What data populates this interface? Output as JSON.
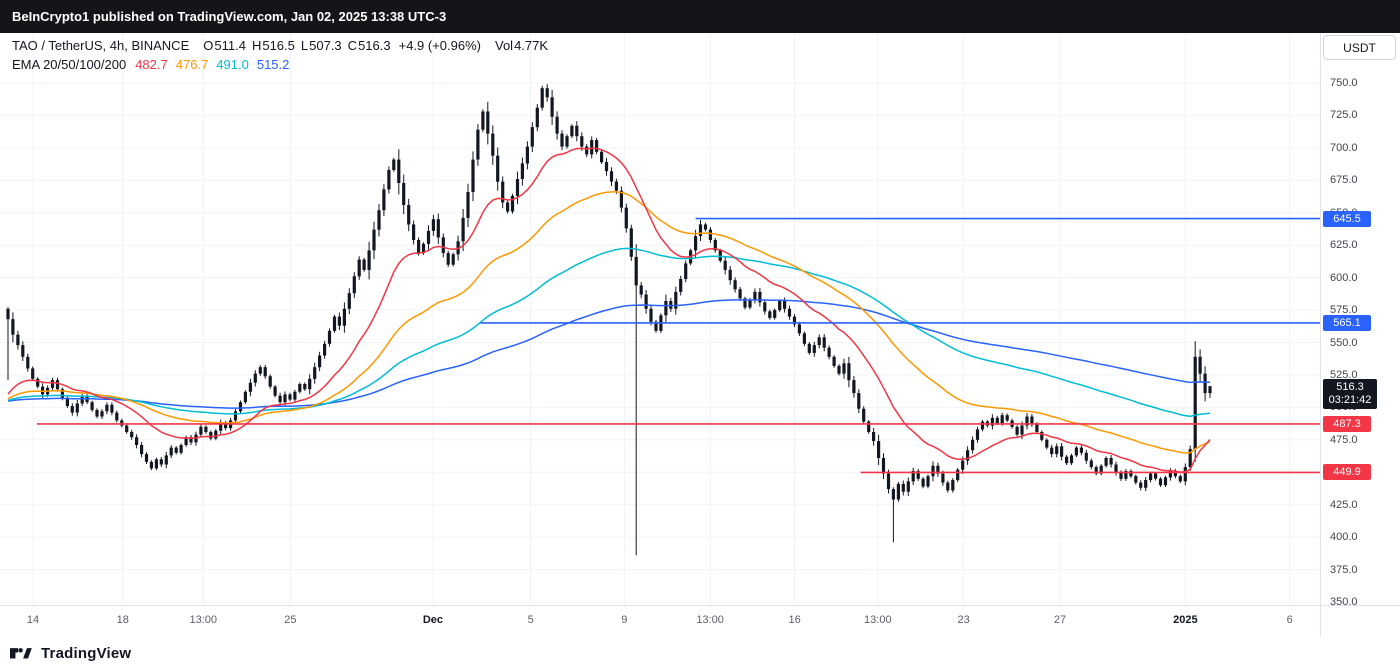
{
  "banner": {
    "text": "BeInCrypto1 published on TradingView.com, Jan 02, 2025 13:38 UTC-3"
  },
  "header": {
    "symbol": "TAO / TetherUS, 4h, BINANCE",
    "ohlc": [
      {
        "label": "O",
        "value": "511.4"
      },
      {
        "label": "H",
        "value": "516.5"
      },
      {
        "label": "L",
        "value": "507.3"
      },
      {
        "label": "C",
        "value": "516.3"
      }
    ],
    "change": "+4.9 (+0.96%)",
    "volume_label": "Vol",
    "volume_value": "4.77K",
    "ema_label": "EMA 20/50/100/200"
  },
  "axis": {
    "currency": "USDT"
  },
  "footer": {
    "brand": "TradingView"
  },
  "colors": {
    "background": "#ffffff",
    "banner_bg": "#141519",
    "grid": "#f0f3fa",
    "candle": "#131722",
    "axis_border": "#e0e3eb",
    "blue": "#2962ff",
    "red": "#f23645"
  },
  "chart_data": {
    "type": "candlestick",
    "symbol": "TAO / TetherUS",
    "timeframe": "4h",
    "exchange": "BINANCE",
    "price_axis": {
      "min": 350,
      "max": 750,
      "tick_step": 25,
      "tick_labels": [
        "750.0",
        "725.0",
        "700.0",
        "675.0",
        "650.0",
        "625.0",
        "600.0",
        "575.0",
        "550.0",
        "525.0",
        "500.0",
        "475.0",
        "450.0",
        "425.0",
        "400.0",
        "375.0",
        "350.0"
      ]
    },
    "time_axis": {
      "ticks": [
        {
          "label": "14",
          "pos": 0.025,
          "bold": false
        },
        {
          "label": "18",
          "pos": 0.093,
          "bold": false
        },
        {
          "label": "13:00",
          "pos": 0.154,
          "bold": false
        },
        {
          "label": "25",
          "pos": 0.22,
          "bold": false
        },
        {
          "label": "Dec",
          "pos": 0.328,
          "bold": true
        },
        {
          "label": "5",
          "pos": 0.402,
          "bold": false
        },
        {
          "label": "9",
          "pos": 0.473,
          "bold": false
        },
        {
          "label": "13:00",
          "pos": 0.538,
          "bold": false
        },
        {
          "label": "16",
          "pos": 0.602,
          "bold": false
        },
        {
          "label": "13:00",
          "pos": 0.665,
          "bold": false
        },
        {
          "label": "23",
          "pos": 0.73,
          "bold": false
        },
        {
          "label": "27",
          "pos": 0.803,
          "bold": false
        },
        {
          "label": "2025",
          "pos": 0.898,
          "bold": true
        },
        {
          "label": "6",
          "pos": 0.977,
          "bold": false
        }
      ]
    },
    "candles": {
      "first_open": 576,
      "closes": [
        568,
        556,
        548,
        539,
        530,
        522,
        516,
        510,
        515,
        521,
        514,
        507,
        501,
        496,
        503,
        509,
        504,
        498,
        493,
        497,
        502,
        496,
        490,
        486,
        481,
        477,
        471,
        464,
        458,
        453,
        460,
        456,
        463,
        469,
        465,
        471,
        477,
        473,
        479,
        485,
        481,
        476,
        482,
        488,
        484,
        490,
        497,
        504,
        512,
        519,
        526,
        531,
        524,
        516,
        509,
        504,
        510,
        506,
        512,
        518,
        514,
        522,
        531,
        540,
        549,
        559,
        570,
        563,
        576,
        588,
        601,
        614,
        606,
        621,
        637,
        652,
        668,
        683,
        691,
        673,
        656,
        641,
        629,
        619,
        626,
        636,
        645,
        631,
        619,
        610,
        618,
        628,
        646,
        666,
        691,
        714,
        728,
        711,
        694,
        674,
        658,
        651,
        663,
        676,
        688,
        701,
        716,
        731,
        746,
        739,
        724,
        711,
        701,
        709,
        717,
        709,
        701,
        695,
        706,
        697,
        689,
        682,
        674,
        667,
        654,
        638,
        616,
        594,
        587,
        576,
        566,
        559,
        571,
        582,
        576,
        589,
        599,
        611,
        621,
        632,
        641,
        637,
        629,
        621,
        613,
        606,
        598,
        591,
        584,
        577,
        583,
        589,
        581,
        574,
        569,
        575,
        582,
        576,
        570,
        564,
        557,
        549,
        542,
        548,
        554,
        546,
        539,
        532,
        526,
        534,
        521,
        511,
        499,
        489,
        481,
        474,
        461,
        449,
        437,
        429,
        441,
        435,
        443,
        451,
        445,
        439,
        447,
        455,
        449,
        442,
        436,
        444,
        452,
        459,
        467,
        475,
        483,
        489,
        486,
        492,
        488,
        494,
        490,
        485,
        479,
        486,
        493,
        487,
        481,
        475,
        469,
        464,
        470,
        462,
        457,
        463,
        469,
        465,
        459,
        454,
        449,
        455,
        461,
        456,
        450,
        445,
        451,
        447,
        442,
        438,
        444,
        449,
        445,
        440,
        446,
        451,
        447,
        443,
        454,
        468,
        539,
        526,
        511,
        516.3
      ],
      "wick_overrides": {
        "0": {
          "low": 521
        },
        "127": {
          "low": 386
        },
        "179": {
          "low": 396
        },
        "240": {
          "high": 551
        },
        "243": {
          "high": 516.5,
          "low": 507.3
        }
      }
    },
    "emas": [
      {
        "period": 20,
        "color": "#f23645",
        "value": "482.7"
      },
      {
        "period": 50,
        "color": "#ff9800",
        "value": "476.7"
      },
      {
        "period": 100,
        "color": "#00bcd4",
        "value": "491.0"
      },
      {
        "period": 200,
        "color": "#2962ff",
        "value": "515.2"
      }
    ],
    "levels": [
      {
        "label": "645.5",
        "value": 645.5,
        "color": "#2962ff",
        "start": 0.527
      },
      {
        "label": "565.1",
        "value": 565.1,
        "color": "#2962ff",
        "start": 0.364
      },
      {
        "label": "487.3",
        "value": 487.3,
        "color": "#f23645",
        "start": 0.028
      },
      {
        "label": "449.9",
        "value": 449.9,
        "color": "#f23645",
        "start": 0.652
      }
    ],
    "last_price": {
      "label": "516.3",
      "value": 516.3,
      "countdown": "03:21:42"
    }
  }
}
